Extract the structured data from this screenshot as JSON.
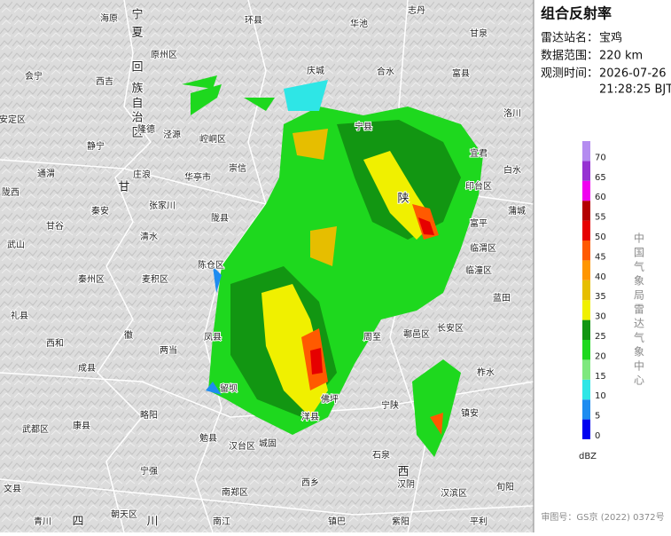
{
  "panel": {
    "title": "组合反射率",
    "station_label": "雷达站名：",
    "station": "宝鸡",
    "range_label": "数据范围：",
    "range": "220 km",
    "time_label": "观测时间：",
    "date": "2026-07-26",
    "time": "21:28:25 BJT"
  },
  "legend": {
    "unit": "dBZ",
    "bins": [
      {
        "value": 0,
        "color": "#0000f0"
      },
      {
        "value": 5,
        "color": "#1e8cf0"
      },
      {
        "value": 10,
        "color": "#2ee6e6"
      },
      {
        "value": 15,
        "color": "#7ee87e"
      },
      {
        "value": 20,
        "color": "#1ed81e"
      },
      {
        "value": 25,
        "color": "#129612"
      },
      {
        "value": 30,
        "color": "#f0f000"
      },
      {
        "value": 35,
        "color": "#e6be00"
      },
      {
        "value": 40,
        "color": "#ff9600"
      },
      {
        "value": 45,
        "color": "#ff5a00"
      },
      {
        "value": 50,
        "color": "#e60000"
      },
      {
        "value": 55,
        "color": "#b40000"
      },
      {
        "value": 60,
        "color": "#f000f0"
      },
      {
        "value": 65,
        "color": "#9632d2"
      },
      {
        "value": 70,
        "color": "#b48cf0"
      }
    ]
  },
  "credit": "中国气象局雷达气象中心",
  "approval": "审图号：GS京 (2022) 0372号",
  "map": {
    "labels": [
      "海原",
      "宁",
      "环县",
      "华池",
      "志丹",
      "甘泉",
      "夏",
      "原州区",
      "回",
      "庆城",
      "合水",
      "富县",
      "会宁",
      "西吉",
      "族",
      "自",
      "治",
      "区",
      "隆德",
      "泾源",
      "崆峒区",
      "洛川",
      "安定区",
      "宁县",
      "静宁",
      "宜君",
      "白水",
      "通渭",
      "庄浪",
      "华亭市",
      "崇信",
      "甘",
      "印台区",
      "陇西",
      "秦安",
      "张家川",
      "陇县",
      "蒲城",
      "甘谷",
      "清水",
      "陕",
      "富平",
      "武山",
      "秦州区",
      "陈仓区",
      "麦积区",
      "临渭区",
      "临潼区",
      "礼县",
      "西和",
      "徽",
      "两当",
      "凤县",
      "周至",
      "鄠邑区",
      "长安区",
      "蓝田",
      "柞水",
      "成县",
      "留坝",
      "佛坪",
      "宁陕",
      "镇安",
      "略阳",
      "洋县",
      "武都区",
      "康县",
      "勉县",
      "城固",
      "汉台区",
      "石泉",
      "宁强",
      "西",
      "汉阴",
      "西乡",
      "文县",
      "南郑区",
      "汉滨区",
      "旬阳",
      "四",
      "川",
      "青川",
      "朝天区",
      "镇巴",
      "紫阳",
      "南江",
      "平利"
    ]
  }
}
